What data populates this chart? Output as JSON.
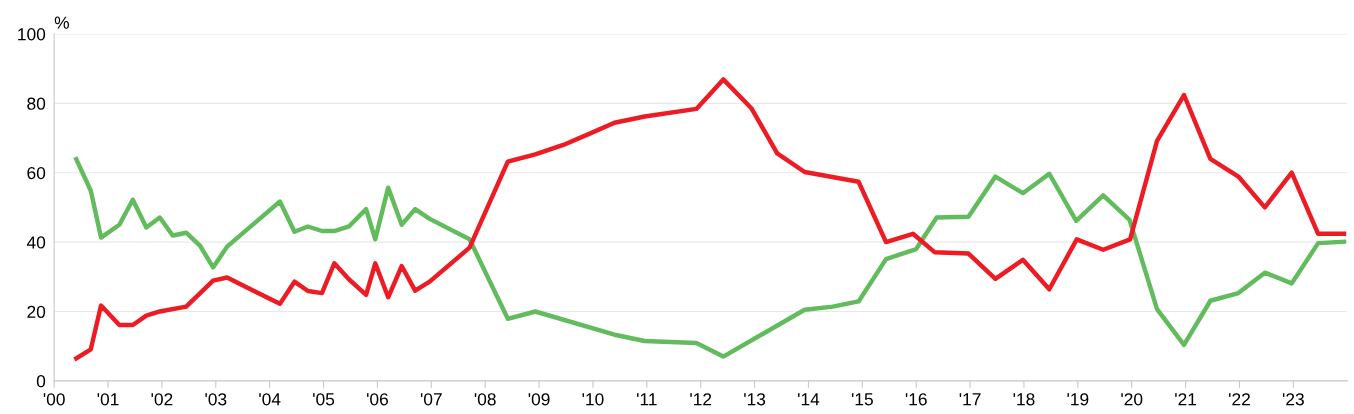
{
  "chart_data": {
    "type": "line",
    "ylabel": "%",
    "xlim": [
      2000,
      2024
    ],
    "xticks": [
      {
        "value": 2000,
        "label": "'00"
      },
      {
        "value": 2001,
        "label": "'01"
      },
      {
        "value": 2002,
        "label": "'02"
      },
      {
        "value": 2003,
        "label": "'03"
      },
      {
        "value": 2004,
        "label": "'04"
      },
      {
        "value": 2005,
        "label": "'05"
      },
      {
        "value": 2006,
        "label": "'06"
      },
      {
        "value": 2007,
        "label": "'07"
      },
      {
        "value": 2008,
        "label": "'08"
      },
      {
        "value": 2009,
        "label": "'09"
      },
      {
        "value": 2010,
        "label": "'10"
      },
      {
        "value": 2011,
        "label": "'11"
      },
      {
        "value": 2012,
        "label": "'12"
      },
      {
        "value": 2013,
        "label": "'13"
      },
      {
        "value": 2014,
        "label": "'14"
      },
      {
        "value": 2015,
        "label": "'15"
      },
      {
        "value": 2016,
        "label": "'16"
      },
      {
        "value": 2017,
        "label": "'17"
      },
      {
        "value": 2018,
        "label": "'18"
      },
      {
        "value": 2019,
        "label": "'19"
      },
      {
        "value": 2020,
        "label": "'20"
      },
      {
        "value": 2021,
        "label": "'21"
      },
      {
        "value": 2022,
        "label": "'22"
      },
      {
        "value": 2023,
        "label": "'23"
      }
    ],
    "ylim": [
      0,
      100
    ],
    "yticks": [
      0,
      20,
      40,
      60,
      80,
      100
    ],
    "grid": "y",
    "legend": false,
    "line_style": "solid",
    "marker": "none",
    "series": [
      {
        "color": "#62bb5d",
        "x": [
          2000.41,
          2000.68,
          2000.87,
          2001.21,
          2001.46,
          2001.71,
          2001.96,
          2002.2,
          2002.45,
          2002.71,
          2002.95,
          2003.21,
          2004.19,
          2004.46,
          2004.71,
          2004.97,
          2005.2,
          2005.47,
          2005.79,
          2005.96,
          2006.2,
          2006.45,
          2006.7,
          2006.97,
          2007.71,
          2008.42,
          2008.93,
          2010.4,
          2010.96,
          2011.92,
          2012.42,
          2013.93,
          2014.45,
          2014.93,
          2015.44,
          2016.0,
          2016.38,
          2016.97,
          2017.47,
          2017.98,
          2018.47,
          2018.97,
          2019.47,
          2019.96,
          2020.47,
          2020.97,
          2021.46,
          2021.98,
          2022.47,
          2022.97,
          2023.46,
          2023.94
        ],
        "values": [
          63.9,
          54.8,
          41.3,
          45.0,
          52.2,
          44.2,
          47.1,
          41.9,
          42.7,
          38.9,
          32.7,
          38.7,
          51.7,
          43.0,
          44.5,
          43.2,
          43.2,
          44.5,
          49.5,
          40.8,
          55.7,
          45.0,
          49.5,
          46.7,
          40.8,
          17.9,
          20.0,
          13.3,
          11.5,
          10.9,
          7.0,
          20.5,
          21.4,
          22.9,
          35.1,
          38.0,
          47.1,
          47.3,
          58.9,
          54.1,
          59.7,
          46.1,
          53.5,
          46.4,
          20.7,
          10.4,
          23.1,
          25.3,
          31.2,
          28.1,
          39.7,
          40.1
        ]
      },
      {
        "color": "#ed1c24",
        "x": [
          2000.41,
          2000.68,
          2000.87,
          2001.21,
          2001.46,
          2001.71,
          2001.96,
          2002.45,
          2002.71,
          2002.95,
          2003.21,
          2004.19,
          2004.46,
          2004.71,
          2004.97,
          2005.2,
          2005.47,
          2005.79,
          2005.96,
          2006.2,
          2006.45,
          2006.7,
          2006.97,
          2007.71,
          2008.42,
          2008.93,
          2009.45,
          2009.93,
          2010.4,
          2010.96,
          2011.92,
          2012.42,
          2012.94,
          2013.42,
          2013.93,
          2014.93,
          2015.44,
          2015.94,
          2016.34,
          2016.97,
          2017.47,
          2017.98,
          2018.47,
          2018.98,
          2019.47,
          2019.97,
          2020.47,
          2020.97,
          2021.46,
          2021.98,
          2022.47,
          2022.97,
          2023.46,
          2023.94
        ],
        "values": [
          6.5,
          9.1,
          21.7,
          16.1,
          16.1,
          18.8,
          20.0,
          21.4,
          25.3,
          28.9,
          29.8,
          22.2,
          28.6,
          25.9,
          25.3,
          33.9,
          29.3,
          24.8,
          33.9,
          24.1,
          33.1,
          26.0,
          28.6,
          38.4,
          63.2,
          65.3,
          68.0,
          71.2,
          74.4,
          76.2,
          78.4,
          86.9,
          78.6,
          65.6,
          60.2,
          57.4,
          40.0,
          42.4,
          37.1,
          36.7,
          29.4,
          34.9,
          26.4,
          40.8,
          37.8,
          40.8,
          69.2,
          82.4,
          64.0,
          58.9,
          50.0,
          60.0,
          42.4,
          42.4
        ]
      }
    ]
  }
}
